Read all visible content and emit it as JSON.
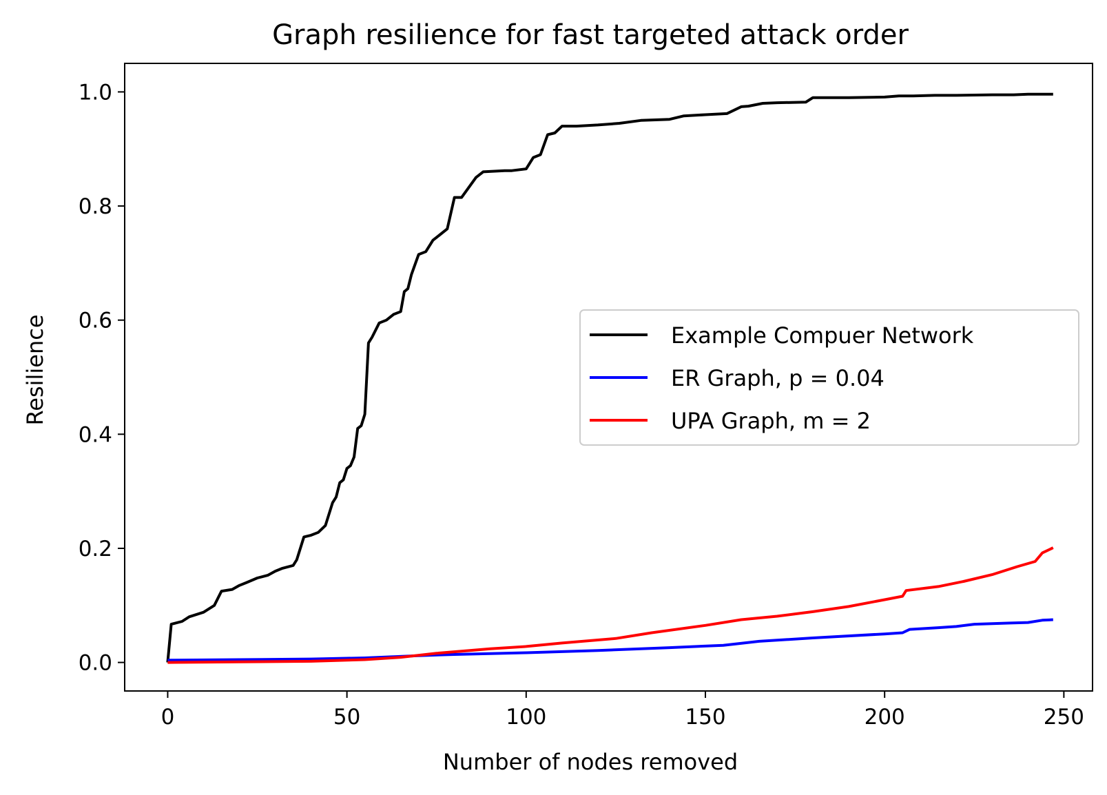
{
  "chart_data": {
    "type": "line",
    "title": "Graph resilience for fast targeted attack order",
    "xlabel": "Number of nodes removed",
    "ylabel": "Resilience",
    "xlim": [
      -12,
      258
    ],
    "ylim": [
      -0.05,
      1.05
    ],
    "xticks": [
      0,
      50,
      100,
      150,
      200,
      250
    ],
    "yticks": [
      0.0,
      0.2,
      0.4,
      0.6,
      0.8,
      1.0
    ],
    "xtick_labels": [
      "0",
      "50",
      "100",
      "150",
      "200",
      "250"
    ],
    "ytick_labels": [
      "0.0",
      "0.2",
      "0.4",
      "0.6",
      "0.8",
      "1.0"
    ],
    "grid": false,
    "legend_position": "center-right",
    "series": [
      {
        "name": "Example Compuer Network",
        "color": "#000000",
        "x": [
          0,
          1,
          4,
          6,
          10,
          13,
          15,
          18,
          20,
          22,
          25,
          28,
          30,
          32,
          35,
          36,
          38,
          40,
          42,
          44,
          46,
          47,
          48,
          49,
          50,
          51,
          52,
          53,
          54,
          55,
          56,
          57,
          59,
          61,
          63,
          65,
          66,
          67,
          68,
          70,
          72,
          74,
          76,
          78,
          80,
          82,
          86,
          88,
          94,
          96,
          100,
          102,
          104,
          106,
          108,
          110,
          114,
          120,
          126,
          132,
          140,
          144,
          150,
          156,
          160,
          162,
          166,
          170,
          178,
          180,
          190,
          200,
          204,
          208,
          214,
          220,
          230,
          236,
          240,
          247
        ],
        "y": [
          0.0,
          0.067,
          0.072,
          0.08,
          0.088,
          0.1,
          0.125,
          0.128,
          0.135,
          0.14,
          0.148,
          0.153,
          0.16,
          0.165,
          0.17,
          0.18,
          0.22,
          0.223,
          0.228,
          0.24,
          0.28,
          0.29,
          0.315,
          0.32,
          0.34,
          0.345,
          0.36,
          0.41,
          0.415,
          0.435,
          0.56,
          0.57,
          0.595,
          0.6,
          0.61,
          0.615,
          0.65,
          0.655,
          0.68,
          0.715,
          0.72,
          0.74,
          0.75,
          0.76,
          0.815,
          0.815,
          0.85,
          0.86,
          0.862,
          0.862,
          0.865,
          0.885,
          0.89,
          0.925,
          0.928,
          0.94,
          0.94,
          0.942,
          0.945,
          0.95,
          0.952,
          0.958,
          0.96,
          0.962,
          0.974,
          0.975,
          0.98,
          0.981,
          0.982,
          0.99,
          0.99,
          0.991,
          0.993,
          0.993,
          0.994,
          0.994,
          0.995,
          0.995,
          0.996,
          0.996
        ]
      },
      {
        "name": "ER Graph, p = 0.04",
        "color": "#0000ff",
        "x": [
          0,
          20,
          40,
          55,
          70,
          80,
          100,
          120,
          140,
          155,
          165,
          180,
          200,
          205,
          207,
          215,
          220,
          225,
          235,
          240,
          244,
          247
        ],
        "y": [
          0.004,
          0.005,
          0.006,
          0.008,
          0.012,
          0.014,
          0.017,
          0.021,
          0.026,
          0.03,
          0.037,
          0.043,
          0.05,
          0.052,
          0.058,
          0.061,
          0.063,
          0.067,
          0.069,
          0.07,
          0.074,
          0.075
        ]
      },
      {
        "name": "UPA Graph, m = 2",
        "color": "#ff0000",
        "x": [
          0,
          20,
          40,
          55,
          65,
          75,
          90,
          100,
          110,
          125,
          135,
          150,
          160,
          170,
          180,
          190,
          200,
          205,
          206,
          215,
          222,
          230,
          237,
          242,
          244,
          247
        ],
        "y": [
          0.0,
          0.001,
          0.002,
          0.005,
          0.009,
          0.016,
          0.024,
          0.028,
          0.034,
          0.042,
          0.052,
          0.065,
          0.075,
          0.081,
          0.089,
          0.098,
          0.11,
          0.116,
          0.126,
          0.133,
          0.142,
          0.154,
          0.168,
          0.177,
          0.192,
          0.201
        ]
      }
    ]
  }
}
